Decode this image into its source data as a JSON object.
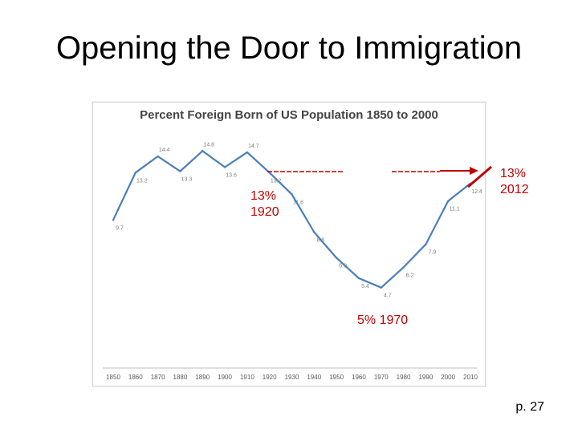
{
  "slide": {
    "title": "Opening the Door to Immigration",
    "page": "p. 27"
  },
  "annotations": {
    "a1920": [
      "13%",
      "1920"
    ],
    "a2012": [
      "13%",
      "2012"
    ],
    "a1970": "5% 1970",
    "color": "#c00000"
  },
  "chart_data": {
    "type": "line",
    "title": "Percent Foreign Born of US Population 1850 to 2000",
    "x": [
      1850,
      1860,
      1870,
      1880,
      1890,
      1900,
      1910,
      1920,
      1930,
      1940,
      1950,
      1960,
      1970,
      1980,
      1990,
      2000,
      2010
    ],
    "ticks": [
      "1850",
      "1860",
      "1870",
      "1880",
      "1890",
      "1900",
      "1910",
      "1920",
      "1930",
      "1940",
      "1950",
      "1960",
      "1970",
      "1980",
      "1990",
      "2000",
      "2010"
    ],
    "values": [
      9.7,
      13.2,
      14.4,
      13.3,
      14.8,
      13.6,
      14.7,
      13.2,
      11.6,
      8.8,
      6.9,
      5.4,
      4.7,
      6.2,
      7.9,
      11.1,
      12.4
    ],
    "data_labels": [
      "9.7",
      "13.2",
      "14.4",
      "13.3",
      "14.8",
      "13.6",
      "14.7",
      "13.2",
      "11.6",
      "8.8",
      "6.9",
      "5.4",
      "4.7",
      "6.2",
      "7.9",
      "11.1",
      "12.4"
    ],
    "ylim": [
      0,
      16
    ],
    "grid": false,
    "line_color": "#4a7ebb"
  }
}
